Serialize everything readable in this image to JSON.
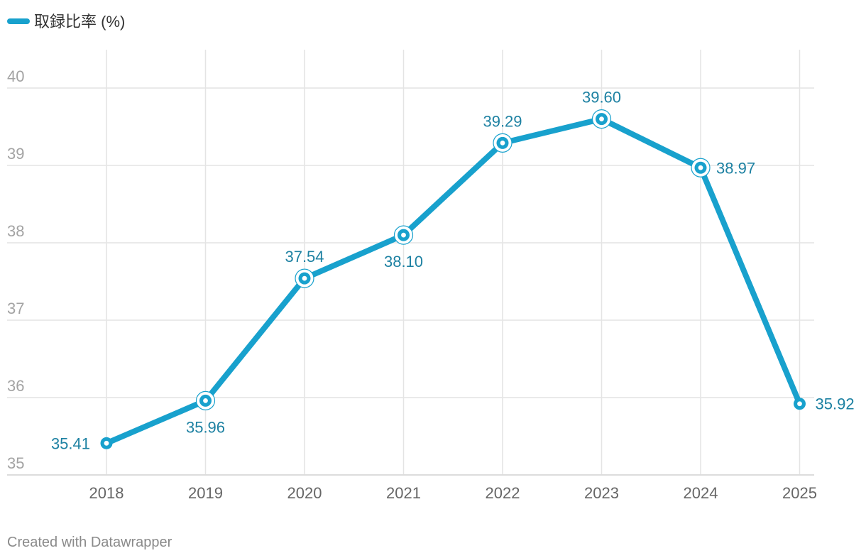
{
  "chart_data": {
    "type": "line",
    "title": "",
    "xlabel": "",
    "ylabel": "",
    "categories": [
      "2018",
      "2019",
      "2020",
      "2021",
      "2022",
      "2023",
      "2024",
      "2025"
    ],
    "series": [
      {
        "name": "取録比率 (%)",
        "values": [
          35.41,
          35.96,
          37.54,
          38.1,
          39.29,
          39.6,
          38.97,
          35.92
        ],
        "labels": [
          "35.41",
          "35.96",
          "37.54",
          "38.10",
          "39.29",
          "39.60",
          "38.97",
          "35.92"
        ]
      }
    ],
    "ylim": [
      35,
      40.5
    ],
    "yticks": [
      "35",
      "36",
      "37",
      "38",
      "39",
      "40"
    ],
    "grid": true,
    "legend_position": "top-left"
  },
  "colors": {
    "series_line": "#18a1cd",
    "data_label": "#1d81a2"
  },
  "footer": {
    "credit": "Created with Datawrapper"
  }
}
